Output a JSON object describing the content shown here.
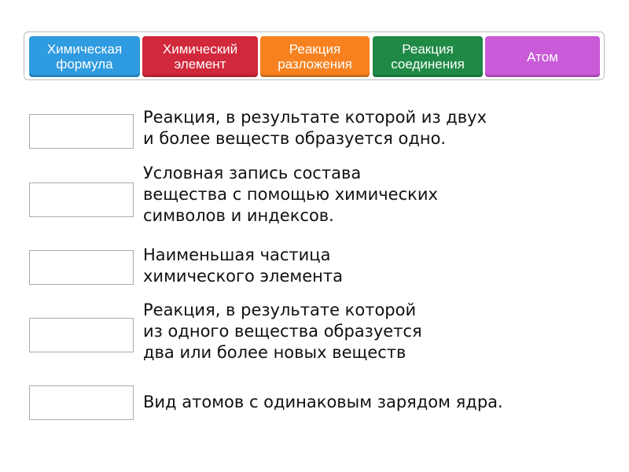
{
  "tiles": [
    {
      "label": "Химическая\nформула",
      "color": "#2f9be0"
    },
    {
      "label": "Химический\nэлемент",
      "color": "#d2283c"
    },
    {
      "label": "Реакция\nразложения",
      "color": "#f7811f"
    },
    {
      "label": "Реакция\nсоединения",
      "color": "#1f8a45"
    },
    {
      "label": "Атом",
      "color": "#c95ad8"
    }
  ],
  "clues": [
    {
      "text": "Реакция, в результате которой из двух\nи более веществ образуется одно."
    },
    {
      "text": "Условная запись состава\nвещества с помощью химических\nсимволов и индексов."
    },
    {
      "text": "Наименьшая частица\nхимического элемента"
    },
    {
      "text": "Реакция, в результате которой\nиз одного вещества образуется\nдва или более новых веществ"
    },
    {
      "text": "Вид атомов с одинаковым зарядом ядра."
    }
  ]
}
